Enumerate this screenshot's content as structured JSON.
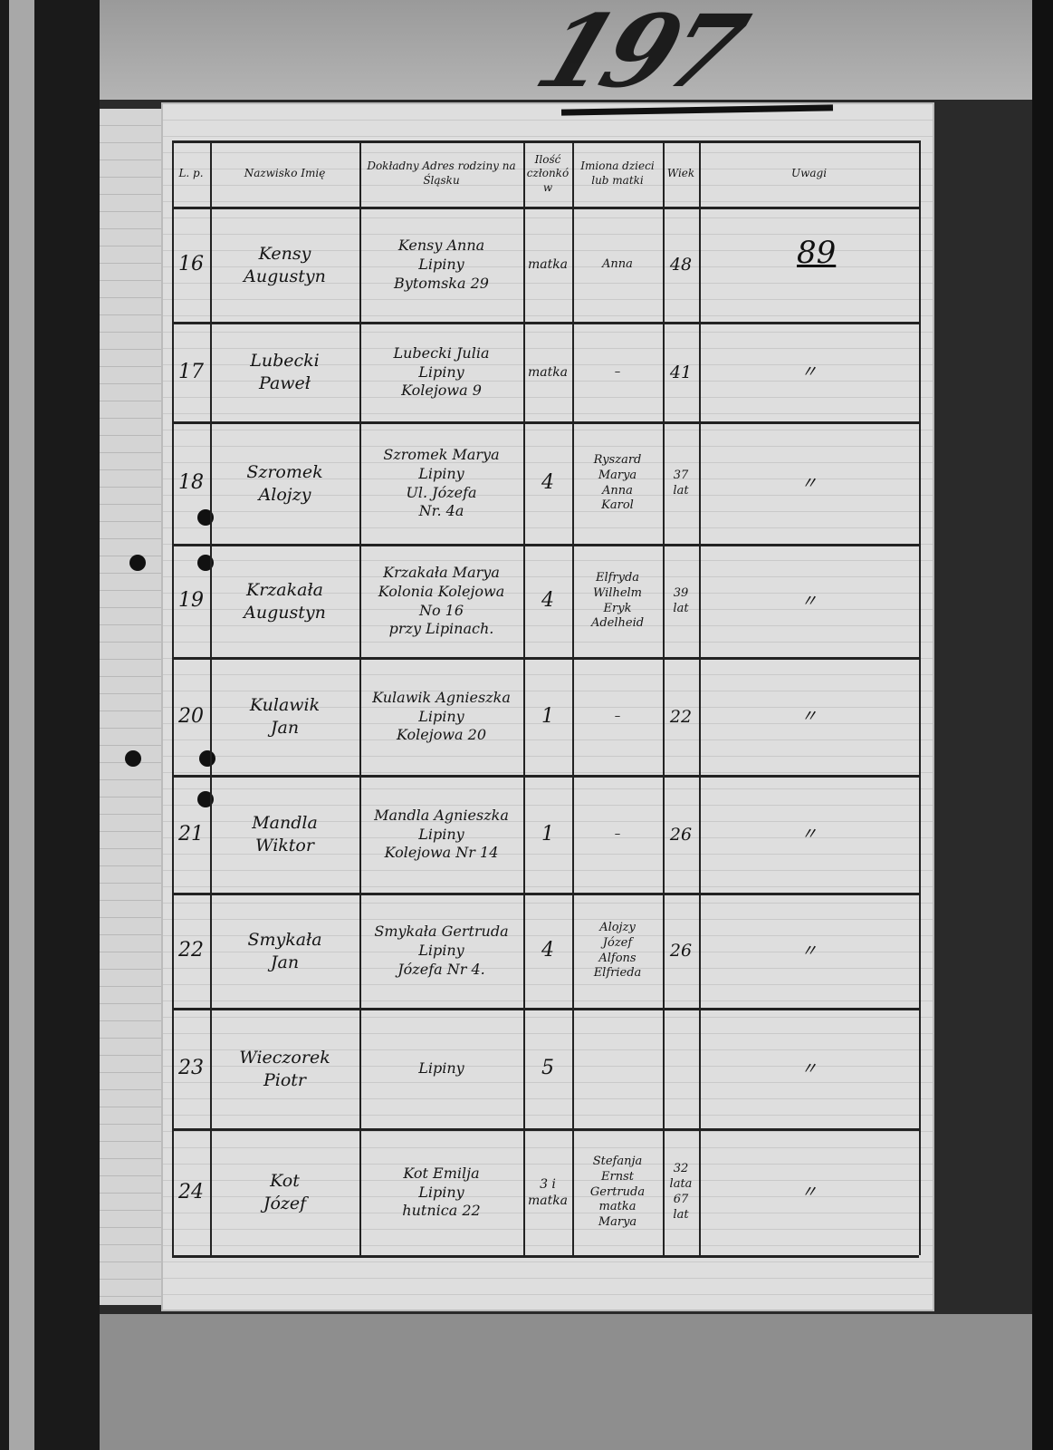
{
  "document": {
    "stamp_number": "197",
    "folio_number": "89",
    "header": {
      "lp": "L. p.",
      "name": "Nazwisko Imię",
      "address": "Dokładny Adres rodziny na Śląsku",
      "count": "Ilość członków",
      "children": "Imiona dzieci lub matki",
      "age": "Wiek",
      "remarks": "Uwagi"
    },
    "rows": [
      {
        "lp": "16",
        "surname": "Kensy",
        "given": "Augustyn",
        "address": [
          "Kensy Anna",
          "Lipiny",
          "Bytomska 29"
        ],
        "count": "matka",
        "children": [
          "Anna"
        ],
        "age": [
          "48"
        ],
        "remark": ""
      },
      {
        "lp": "17",
        "surname": "Lubecki",
        "given": "Paweł",
        "address": [
          "Lubecki Julia",
          "Lipiny",
          "Kolejowa 9"
        ],
        "count": "matka",
        "children": [
          "–"
        ],
        "age": [
          "41"
        ],
        "remark": "〃"
      },
      {
        "lp": "18",
        "surname": "Szromek",
        "given": "Alojzy",
        "address": [
          "Szromek Marya",
          "Lipiny",
          "Ul. Józefa",
          "Nr. 4a"
        ],
        "count": "4",
        "children": [
          "Ryszard",
          "Marya",
          "Anna",
          "Karol"
        ],
        "age": [
          "37",
          "lat"
        ],
        "remark": "〃"
      },
      {
        "lp": "19",
        "surname": "Krzakała",
        "given": "Augustyn",
        "address": [
          "Krzakała Marya",
          "Kolonia Kolejowa",
          "No 16",
          "przy Lipinach."
        ],
        "count": "4",
        "children": [
          "Elfryda",
          "Wilhelm",
          "Eryk",
          "Adelheid"
        ],
        "age": [
          "39",
          "lat"
        ],
        "remark": "〃"
      },
      {
        "lp": "20",
        "surname": "Kulawik",
        "given": "Jan",
        "address": [
          "Kulawik Agnieszka",
          "Lipiny",
          "Kolejowa 20"
        ],
        "count": "1",
        "children": [
          "–"
        ],
        "age": [
          "22"
        ],
        "remark": "〃"
      },
      {
        "lp": "21",
        "surname": "Mandla",
        "given": "Wiktor",
        "address": [
          "Mandla Agnieszka",
          "Lipiny",
          "Kolejowa Nr 14"
        ],
        "count": "1",
        "children": [
          "–"
        ],
        "age": [
          "26"
        ],
        "remark": "〃"
      },
      {
        "lp": "22",
        "surname": "Smykała",
        "given": "Jan",
        "address": [
          "Smykała Gertruda",
          "Lipiny",
          "Józefa Nr 4."
        ],
        "count": "4",
        "children": [
          "Alojzy",
          "Józef",
          "Alfons",
          "Elfrieda"
        ],
        "age": [
          "26"
        ],
        "remark": "〃"
      },
      {
        "lp": "23",
        "surname": "Wieczorek",
        "given": "Piotr",
        "address": [
          "Lipiny"
        ],
        "count": "5",
        "children": [],
        "age": [],
        "remark": "〃"
      },
      {
        "lp": "24",
        "surname": "Kot",
        "given": "Józef",
        "address": [
          "Kot Emilja",
          "Lipiny",
          "hutnica 22"
        ],
        "count": "3 i matka",
        "children": [
          "Stefanja",
          "Ernst",
          "Gertruda",
          "matka",
          "Marya"
        ],
        "age": [
          "32",
          "lata",
          "67",
          "lat"
        ],
        "remark": "〃"
      }
    ]
  }
}
